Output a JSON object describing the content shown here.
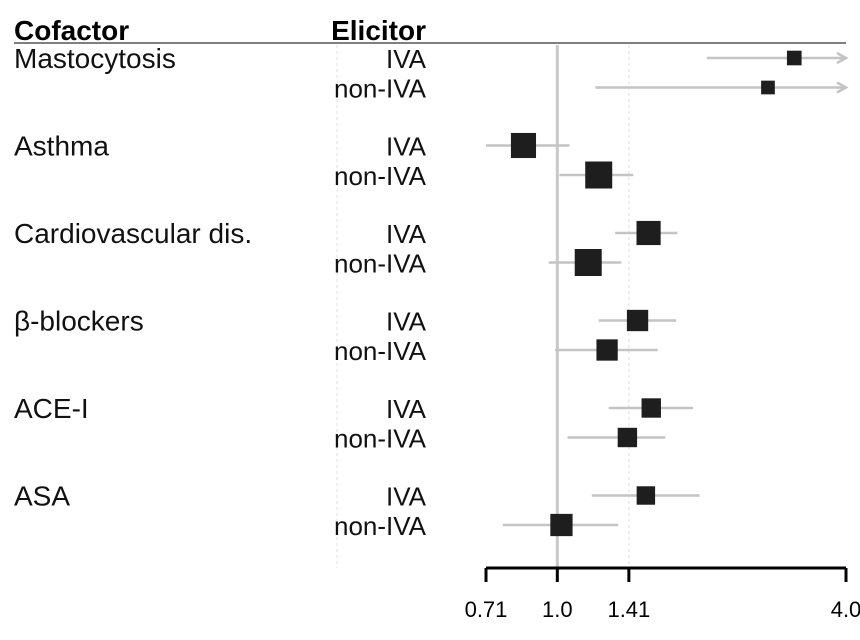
{
  "chart_data": {
    "type": "forest",
    "headers": {
      "cofactor": "Cofactor",
      "elicitor": "Elicitor"
    },
    "x_scale": "log2",
    "xlim": [
      0.71,
      4.0
    ],
    "reference_line": 1.0,
    "x_ticks": [
      {
        "value": 0.71,
        "label": "0.71"
      },
      {
        "value": 1.0,
        "label": "1.0"
      },
      {
        "value": 1.41,
        "label": "1.41"
      },
      {
        "value": 4.0,
        "label": "4.0"
      }
    ],
    "groups": [
      {
        "cofactor": "Mastocytosis",
        "rows": [
          {
            "elicitor": "IVA",
            "estimate": 3.12,
            "lower": 2.05,
            "upper": 4.0,
            "weight": 0.35,
            "upper_truncated": true
          },
          {
            "elicitor": "non-IVA",
            "estimate": 2.75,
            "lower": 1.2,
            "upper": 4.0,
            "weight": 0.3,
            "upper_truncated": true
          }
        ]
      },
      {
        "cofactor": "Asthma",
        "rows": [
          {
            "elicitor": "IVA",
            "estimate": 0.85,
            "lower": 0.65,
            "upper": 1.06,
            "weight": 0.9
          },
          {
            "elicitor": "non-IVA",
            "estimate": 1.22,
            "lower": 1.01,
            "upper": 1.44,
            "weight": 1.0
          }
        ]
      },
      {
        "cofactor": "Cardiovascular dis.",
        "rows": [
          {
            "elicitor": "IVA",
            "estimate": 1.55,
            "lower": 1.32,
            "upper": 1.78,
            "weight": 0.85
          },
          {
            "elicitor": "non-IVA",
            "estimate": 1.16,
            "lower": 0.96,
            "upper": 1.36,
            "weight": 1.0
          }
        ]
      },
      {
        "cofactor": "β-blockers",
        "rows": [
          {
            "elicitor": "IVA",
            "estimate": 1.47,
            "lower": 1.22,
            "upper": 1.77,
            "weight": 0.7
          },
          {
            "elicitor": "non-IVA",
            "estimate": 1.27,
            "lower": 0.99,
            "upper": 1.62,
            "weight": 0.7
          }
        ]
      },
      {
        "cofactor": "ACE-I",
        "rows": [
          {
            "elicitor": "IVA",
            "estimate": 1.57,
            "lower": 1.28,
            "upper": 1.92,
            "weight": 0.6
          },
          {
            "elicitor": "non-IVA",
            "estimate": 1.4,
            "lower": 1.05,
            "upper": 1.68,
            "weight": 0.6
          }
        ]
      },
      {
        "cofactor": "ASA",
        "rows": [
          {
            "elicitor": "IVA",
            "estimate": 1.53,
            "lower": 1.18,
            "upper": 1.98,
            "weight": 0.55
          },
          {
            "elicitor": "non-IVA",
            "estimate": 1.02,
            "lower": 0.77,
            "upper": 1.34,
            "weight": 0.75
          }
        ]
      }
    ]
  }
}
